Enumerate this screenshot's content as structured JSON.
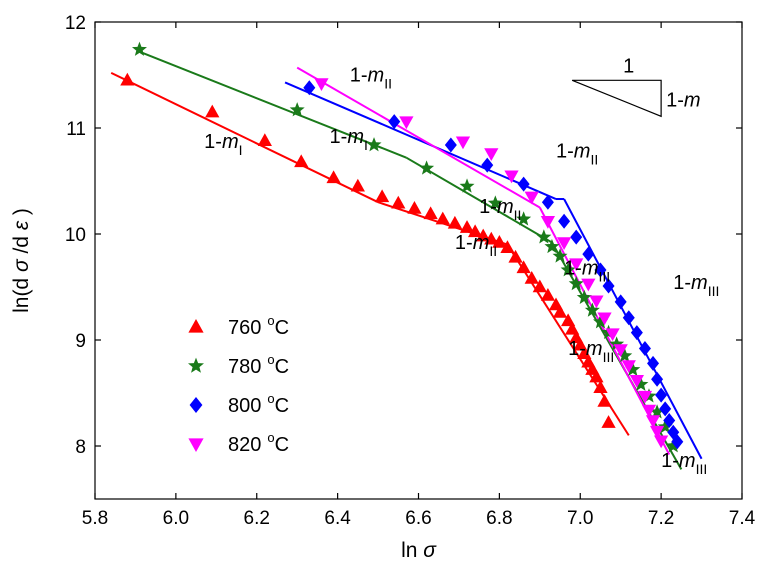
{
  "chart_data": {
    "type": "scatter",
    "x_axis": {
      "label_ln": "ln",
      "label_sym": "σ",
      "range": [
        5.8,
        7.4
      ],
      "ticks": [
        "5.8",
        "6.0",
        "6.2",
        "6.4",
        "6.6",
        "6.8",
        "7.0",
        "7.2",
        "7.4"
      ]
    },
    "y_axis": {
      "label_parts": [
        "ln(d",
        "σ",
        "/d",
        "ε",
        ")"
      ],
      "range": [
        7.5,
        12.0
      ],
      "ticks": [
        "8",
        "9",
        "10",
        "11",
        "12"
      ]
    },
    "grid": false,
    "legend_position": "lower-left",
    "series": [
      {
        "name": "760 °C",
        "label_value": "760",
        "label_unit": "C",
        "label_sup": "o",
        "color": "#ff0000",
        "marker": "triangle-up",
        "points": [
          [
            5.88,
            11.45
          ],
          [
            6.09,
            11.15
          ],
          [
            6.22,
            10.88
          ],
          [
            6.31,
            10.68
          ],
          [
            6.39,
            10.53
          ],
          [
            6.45,
            10.45
          ],
          [
            6.51,
            10.35
          ],
          [
            6.55,
            10.29
          ],
          [
            6.59,
            10.24
          ],
          [
            6.63,
            10.19
          ],
          [
            6.66,
            10.14
          ],
          [
            6.69,
            10.1
          ],
          [
            6.72,
            10.06
          ],
          [
            6.74,
            10.02
          ],
          [
            6.76,
            9.98
          ],
          [
            6.78,
            9.95
          ],
          [
            6.8,
            9.92
          ],
          [
            6.82,
            9.87
          ],
          [
            6.84,
            9.78
          ],
          [
            6.86,
            9.68
          ],
          [
            6.88,
            9.58
          ],
          [
            6.9,
            9.5
          ],
          [
            6.92,
            9.42
          ],
          [
            6.94,
            9.33
          ],
          [
            6.95,
            9.26
          ],
          [
            6.97,
            9.18
          ],
          [
            6.98,
            9.1
          ],
          [
            6.99,
            9.02
          ],
          [
            7.0,
            8.95
          ],
          [
            7.01,
            8.87
          ],
          [
            7.02,
            8.79
          ],
          [
            7.03,
            8.72
          ],
          [
            7.04,
            8.65
          ],
          [
            7.05,
            8.55
          ],
          [
            7.06,
            8.42
          ],
          [
            7.07,
            8.22
          ]
        ],
        "fit_lines": [
          [
            [
              5.84,
              11.52
            ],
            [
              6.5,
              10.3
            ]
          ],
          [
            [
              6.5,
              10.3
            ],
            [
              6.82,
              9.9
            ]
          ],
          [
            [
              6.82,
              9.9
            ],
            [
              7.12,
              8.1
            ]
          ]
        ]
      },
      {
        "name": "780 °C",
        "label_value": "780",
        "label_unit": "C",
        "label_sup": "o",
        "color": "#1a7a1a",
        "marker": "star",
        "points": [
          [
            5.91,
            11.74
          ],
          [
            6.3,
            11.17
          ],
          [
            6.49,
            10.84
          ],
          [
            6.62,
            10.62
          ],
          [
            6.72,
            10.45
          ],
          [
            6.79,
            10.29
          ],
          [
            6.86,
            10.14
          ],
          [
            6.91,
            9.97
          ],
          [
            6.93,
            9.88
          ],
          [
            6.95,
            9.79
          ],
          [
            6.97,
            9.66
          ],
          [
            6.99,
            9.53
          ],
          [
            7.01,
            9.4
          ],
          [
            7.03,
            9.28
          ],
          [
            7.05,
            9.17
          ],
          [
            7.07,
            9.07
          ],
          [
            7.09,
            8.96
          ],
          [
            7.11,
            8.85
          ],
          [
            7.13,
            8.72
          ],
          [
            7.15,
            8.58
          ],
          [
            7.17,
            8.47
          ],
          [
            7.19,
            8.32
          ],
          [
            7.21,
            8.18
          ],
          [
            7.23,
            8.0
          ]
        ],
        "fit_lines": [
          [
            [
              5.91,
              11.72
            ],
            [
              6.57,
              10.72
            ]
          ],
          [
            [
              6.57,
              10.72
            ],
            [
              6.93,
              9.92
            ]
          ],
          [
            [
              6.93,
              9.92
            ],
            [
              7.25,
              7.78
            ]
          ]
        ]
      },
      {
        "name": "800 °C",
        "label_value": "800",
        "label_unit": "C",
        "label_sup": "o",
        "color": "#0000ff",
        "marker": "diamond",
        "points": [
          [
            6.33,
            11.38
          ],
          [
            6.54,
            11.06
          ],
          [
            6.68,
            10.84
          ],
          [
            6.77,
            10.65
          ],
          [
            6.86,
            10.47
          ],
          [
            6.92,
            10.3
          ],
          [
            6.96,
            10.12
          ],
          [
            6.99,
            9.97
          ],
          [
            7.02,
            9.81
          ],
          [
            7.05,
            9.66
          ],
          [
            7.07,
            9.51
          ],
          [
            7.1,
            9.36
          ],
          [
            7.12,
            9.21
          ],
          [
            7.14,
            9.07
          ],
          [
            7.16,
            8.92
          ],
          [
            7.18,
            8.78
          ],
          [
            7.19,
            8.63
          ],
          [
            7.2,
            8.48
          ],
          [
            7.21,
            8.35
          ],
          [
            7.22,
            8.24
          ],
          [
            7.23,
            8.13
          ],
          [
            7.24,
            8.04
          ]
        ],
        "fit_lines": [
          [
            [
              6.27,
              11.43
            ],
            [
              6.94,
              10.33
            ]
          ],
          [
            [
              6.94,
              10.33
            ],
            [
              6.96,
              10.33
            ]
          ],
          [
            [
              6.96,
              10.33
            ],
            [
              7.3,
              7.88
            ]
          ]
        ]
      },
      {
        "name": "820 °C",
        "label_value": "820",
        "label_unit": "C",
        "label_sup": "o",
        "color": "#ff00ff",
        "marker": "triangle-down",
        "points": [
          [
            6.36,
            11.42
          ],
          [
            6.57,
            11.06
          ],
          [
            6.71,
            10.87
          ],
          [
            6.78,
            10.76
          ],
          [
            6.83,
            10.55
          ],
          [
            6.88,
            10.35
          ],
          [
            6.92,
            10.12
          ],
          [
            6.96,
            9.92
          ],
          [
            6.99,
            9.72
          ],
          [
            7.02,
            9.53
          ],
          [
            7.04,
            9.37
          ],
          [
            7.06,
            9.21
          ],
          [
            7.08,
            9.06
          ],
          [
            7.1,
            8.91
          ],
          [
            7.12,
            8.76
          ],
          [
            7.14,
            8.62
          ],
          [
            7.16,
            8.47
          ],
          [
            7.17,
            8.34
          ],
          [
            7.18,
            8.24
          ],
          [
            7.19,
            8.14
          ],
          [
            7.2,
            8.05
          ]
        ],
        "fit_lines": [
          [
            [
              6.3,
              11.57
            ],
            [
              6.9,
              10.25
            ]
          ],
          [
            [
              6.9,
              10.25
            ],
            [
              7.22,
              7.92
            ]
          ]
        ]
      }
    ],
    "annotations": [
      {
        "id": "760-I",
        "main": "1-",
        "italic": "m",
        "sub": "I",
        "x": 6.07,
        "y": 10.81
      },
      {
        "id": "780-I",
        "main": "1-",
        "italic": "m",
        "sub": "I",
        "x": 6.38,
        "y": 10.86
      },
      {
        "id": "820-II",
        "main": "1-",
        "italic": "m",
        "sub": "II",
        "x": 6.43,
        "y": 11.44
      },
      {
        "id": "800-II",
        "main": "1-",
        "italic": "m",
        "sub": "II",
        "x": 6.94,
        "y": 10.72
      },
      {
        "id": "780-II",
        "main": "1-",
        "italic": "m",
        "sub": "II",
        "x": 6.75,
        "y": 10.2
      },
      {
        "id": "760-II",
        "main": "1-",
        "italic": "m",
        "sub": "II",
        "x": 6.69,
        "y": 9.86
      },
      {
        "id": "780-III",
        "main": "1-",
        "italic": "m",
        "sub": "III",
        "x": 6.96,
        "y": 9.62
      },
      {
        "id": "800-III",
        "main": "1-",
        "italic": "m",
        "sub": "III",
        "x": 7.23,
        "y": 9.48
      },
      {
        "id": "760-III",
        "main": "1-",
        "italic": "m",
        "sub": "III",
        "x": 6.97,
        "y": 8.86
      },
      {
        "id": "820-III",
        "main": "1-",
        "italic": "m",
        "sub": "III",
        "x": 7.2,
        "y": 7.8
      }
    ],
    "slope_triangle": {
      "top_label": "1",
      "side_label_main": "1-",
      "side_label_italic": "m",
      "vertices": [
        [
          6.98,
          11.45
        ],
        [
          7.2,
          11.45
        ],
        [
          7.2,
          11.11
        ]
      ]
    }
  }
}
